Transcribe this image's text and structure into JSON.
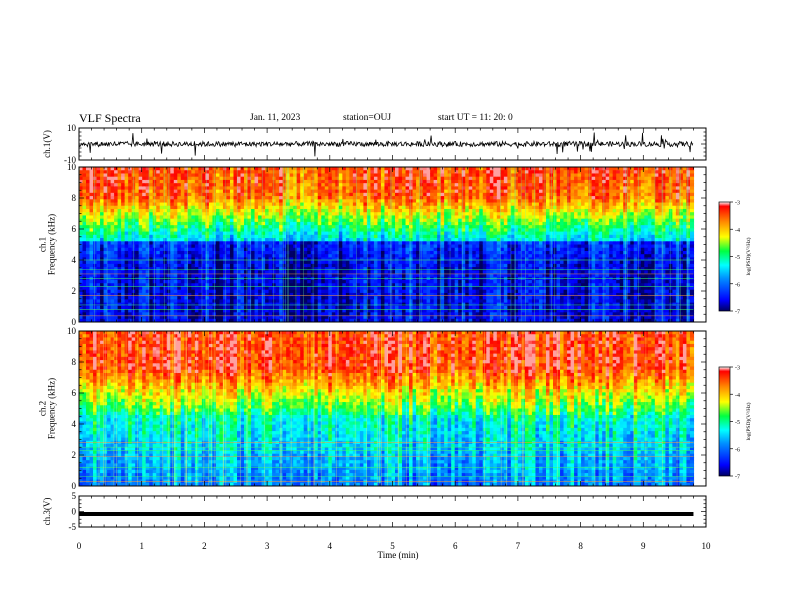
{
  "header": {
    "title": "VLF Spectra",
    "date": "Jan. 11, 2023",
    "station": "station=OUJ",
    "start_ut": "start UT =  11: 20: 0"
  },
  "colorbar": {
    "label": "log(PSD)(V²/Hz)",
    "ticks": [
      "-3",
      "-4",
      "-5",
      "-6",
      "-7"
    ],
    "colors": [
      "#ff0000",
      "#ff8800",
      "#ffff00",
      "#00ff00",
      "#00ffff",
      "#0080ff",
      "#0000ff",
      "#000080"
    ]
  },
  "chart_data": [
    {
      "type": "line",
      "panel": "ch1-waveform",
      "ylabel": "ch.1(V)",
      "ylim": [
        -10,
        10
      ],
      "yticks": [
        "10",
        "-10"
      ],
      "xlabel": "",
      "xlim": [
        0,
        10
      ],
      "baseline": 0,
      "line_color": "#000000"
    },
    {
      "type": "heatmap",
      "panel": "ch1-spectrogram",
      "ylabel": "ch.1\nFrequency (kHz)",
      "ylim": [
        0,
        10
      ],
      "yticks": [
        "0",
        "2",
        "4",
        "6",
        "8",
        "10"
      ],
      "xlim": [
        0,
        10
      ],
      "data_end_min": 9.8,
      "zlim": [
        -7,
        -3
      ],
      "zlabel": "log(PSD)(V²/Hz)"
    },
    {
      "type": "heatmap",
      "panel": "ch2-spectrogram",
      "ylabel": "ch.2\nFrequency (kHz)",
      "ylim": [
        0,
        10
      ],
      "yticks": [
        "0",
        "2",
        "4",
        "6",
        "8",
        "10"
      ],
      "xlim": [
        0,
        10
      ],
      "data_end_min": 9.8,
      "zlim": [
        -7,
        -3
      ],
      "zlabel": "log(PSD)(V²/Hz)"
    },
    {
      "type": "line",
      "panel": "ch3-waveform",
      "ylabel": "ch.3(V)",
      "ylim": [
        -5,
        5
      ],
      "yticks": [
        "5",
        "0",
        "-5"
      ],
      "xlabel": "Time (min)",
      "xlim": [
        0,
        10
      ],
      "xticks": [
        "0",
        "1",
        "2",
        "3",
        "4",
        "5",
        "6",
        "7",
        "8",
        "9",
        "10"
      ],
      "constant_value": -0.8,
      "line_color": "#000000"
    }
  ]
}
